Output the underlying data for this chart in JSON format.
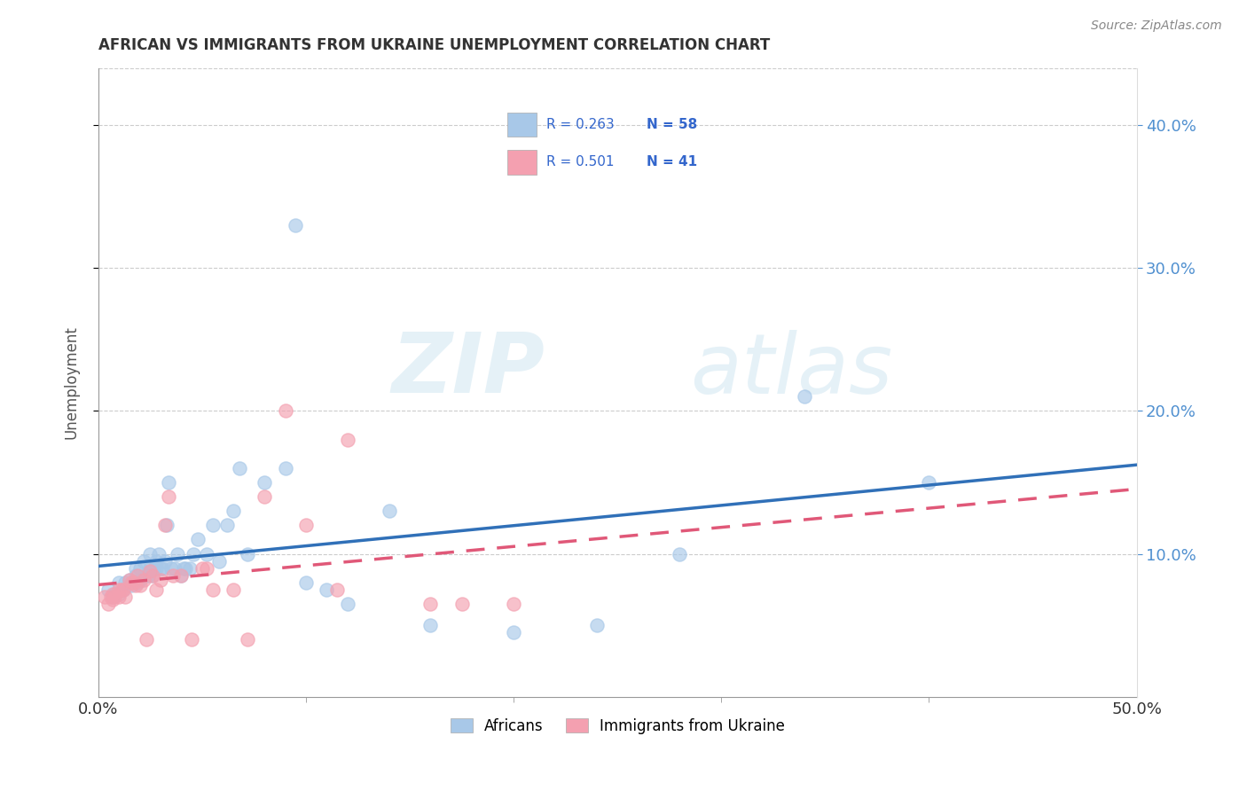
{
  "title": "AFRICAN VS IMMIGRANTS FROM UKRAINE UNEMPLOYMENT CORRELATION CHART",
  "source": "Source: ZipAtlas.com",
  "ylabel": "Unemployment",
  "R1": 0.263,
  "N1": 58,
  "R2": 0.501,
  "N2": 41,
  "color_blue": "#a8c8e8",
  "color_pink": "#f4a0b0",
  "color_blue_line": "#3070b8",
  "color_pink_line": "#e05878",
  "color_right_axis": "#5090d0",
  "watermark_zip": "ZIP",
  "watermark_atlas": "atlas",
  "legend_label_1": "Africans",
  "legend_label_2": "Immigrants from Ukraine",
  "xlim": [
    0.0,
    0.5
  ],
  "ylim": [
    0.0,
    0.44
  ],
  "xticks_pos": [
    0.0,
    0.5
  ],
  "xtick_labels": [
    "0.0%",
    "50.0%"
  ],
  "yticks_right": [
    0.1,
    0.2,
    0.3,
    0.4
  ],
  "ytick_right_labels": [
    "10.0%",
    "20.0%",
    "30.0%",
    "40.0%"
  ],
  "grid_yticks": [
    0.1,
    0.2,
    0.3,
    0.4
  ],
  "africans_x": [
    0.005,
    0.007,
    0.008,
    0.01,
    0.01,
    0.012,
    0.013,
    0.015,
    0.016,
    0.018,
    0.018,
    0.019,
    0.02,
    0.02,
    0.022,
    0.023,
    0.024,
    0.025,
    0.025,
    0.026,
    0.027,
    0.028,
    0.028,
    0.029,
    0.03,
    0.031,
    0.032,
    0.033,
    0.034,
    0.035,
    0.037,
    0.038,
    0.04,
    0.041,
    0.042,
    0.044,
    0.046,
    0.048,
    0.052,
    0.055,
    0.058,
    0.062,
    0.065,
    0.068,
    0.072,
    0.08,
    0.09,
    0.095,
    0.1,
    0.11,
    0.12,
    0.14,
    0.16,
    0.2,
    0.24,
    0.28,
    0.34,
    0.4
  ],
  "africans_y": [
    0.075,
    0.07,
    0.072,
    0.08,
    0.072,
    0.075,
    0.08,
    0.082,
    0.078,
    0.085,
    0.09,
    0.08,
    0.09,
    0.082,
    0.095,
    0.085,
    0.085,
    0.09,
    0.1,
    0.085,
    0.09,
    0.09,
    0.095,
    0.1,
    0.09,
    0.09,
    0.095,
    0.12,
    0.15,
    0.09,
    0.09,
    0.1,
    0.085,
    0.09,
    0.09,
    0.09,
    0.1,
    0.11,
    0.1,
    0.12,
    0.095,
    0.12,
    0.13,
    0.16,
    0.1,
    0.15,
    0.16,
    0.33,
    0.08,
    0.075,
    0.065,
    0.13,
    0.05,
    0.045,
    0.05,
    0.1,
    0.21,
    0.15
  ],
  "ukraine_x": [
    0.003,
    0.005,
    0.006,
    0.007,
    0.007,
    0.008,
    0.01,
    0.01,
    0.011,
    0.012,
    0.013,
    0.015,
    0.016,
    0.017,
    0.018,
    0.019,
    0.02,
    0.022,
    0.023,
    0.025,
    0.026,
    0.028,
    0.03,
    0.032,
    0.034,
    0.036,
    0.04,
    0.045,
    0.05,
    0.052,
    0.055,
    0.065,
    0.072,
    0.08,
    0.09,
    0.1,
    0.115,
    0.12,
    0.16,
    0.175,
    0.2
  ],
  "ukraine_y": [
    0.07,
    0.065,
    0.07,
    0.068,
    0.072,
    0.07,
    0.075,
    0.07,
    0.075,
    0.075,
    0.07,
    0.082,
    0.08,
    0.08,
    0.078,
    0.085,
    0.078,
    0.082,
    0.04,
    0.088,
    0.085,
    0.075,
    0.082,
    0.12,
    0.14,
    0.085,
    0.085,
    0.04,
    0.09,
    0.09,
    0.075,
    0.075,
    0.04,
    0.14,
    0.2,
    0.12,
    0.075,
    0.18,
    0.065,
    0.065,
    0.065
  ]
}
